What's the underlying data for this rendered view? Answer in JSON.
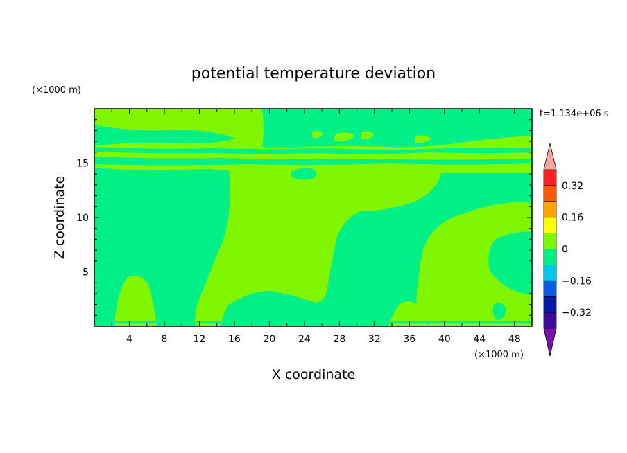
{
  "chart_data": {
    "type": "heatmap",
    "title": "potential temperature deviation",
    "time_label": "t=1.134e+06 s",
    "xlabel": "X coordinate",
    "ylabel": "Z coordinate",
    "x_unit": "(×1000 m)",
    "y_unit": "(×1000 m)",
    "xlim": [
      0,
      50
    ],
    "ylim": [
      0,
      20
    ],
    "x_ticks": [
      "4",
      "8",
      "12",
      "16",
      "20",
      "24",
      "28",
      "32",
      "36",
      "40",
      "44",
      "48"
    ],
    "y_ticks": [
      "5",
      "10",
      "15"
    ],
    "colorbar": {
      "labels": [
        "0.32",
        "0.16",
        "0",
        "−0.16",
        "−0.32"
      ],
      "levels": [
        -0.4,
        -0.32,
        -0.24,
        -0.16,
        -0.08,
        0,
        0.08,
        0.16,
        0.24,
        0.32,
        0.4
      ],
      "colors": [
        "#7a0fb0",
        "#3b0c9a",
        "#0a1aa6",
        "#0a5ce6",
        "#00c8f0",
        "#00ef86",
        "#80f500",
        "#ffff00",
        "#ffa400",
        "#ff5a00",
        "#ff2020",
        "#f7a6a0"
      ],
      "extend": "both"
    },
    "field_summary": {
      "background_level": "0 to 0.08 (light green)",
      "region_levels": "-0.08 to 0 (teal green)",
      "colors": {
        "positive": "#80f500",
        "negative": "#00ef86"
      }
    }
  }
}
